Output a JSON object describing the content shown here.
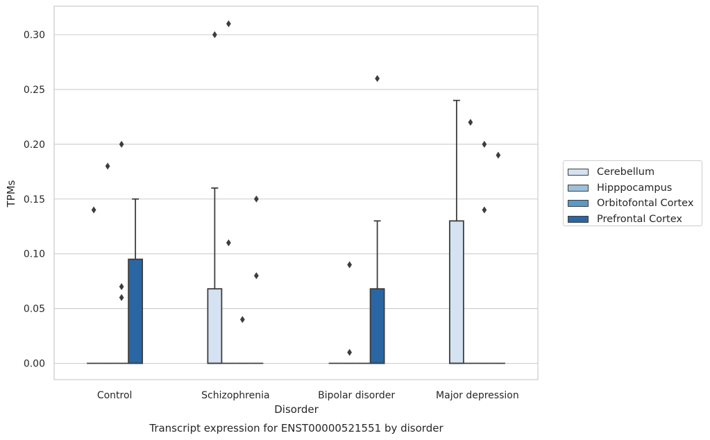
{
  "chart_data": {
    "type": "box",
    "title": "Transcript expression for ENST00000521551 by disorder",
    "xlabel": "Disorder",
    "ylabel": "TPMs",
    "ylim": [
      -0.015,
      0.326
    ],
    "yticks": [
      "0.00",
      "0.05",
      "0.10",
      "0.15",
      "0.20",
      "0.25",
      "0.30"
    ],
    "grid": "horizontal",
    "legend_position": "right",
    "categories": [
      "Control",
      "Schizophrenia",
      "Bipolar disorder",
      "Major depression"
    ],
    "series": [
      {
        "name": "Cerebellum",
        "color": "#d4e2f1",
        "boxes": [
          {
            "q1": 0,
            "median": 0,
            "q3": 0,
            "whisker_low": 0,
            "whisker_high": 0,
            "outliers": [
              0.14
            ]
          },
          {
            "q1": 0,
            "median": 0,
            "q3": 0.068,
            "whisker_low": 0,
            "whisker_high": 0.16,
            "outliers": [
              0.3
            ]
          },
          {
            "q1": 0,
            "median": 0,
            "q3": 0,
            "whisker_low": 0,
            "whisker_high": 0,
            "outliers": []
          },
          {
            "q1": 0,
            "median": 0,
            "q3": 0.13,
            "whisker_low": 0,
            "whisker_high": 0.24,
            "outliers": []
          }
        ]
      },
      {
        "name": "Hipppocampus",
        "color": "#9bc1da",
        "boxes": [
          {
            "q1": 0,
            "median": 0,
            "q3": 0,
            "whisker_low": 0,
            "whisker_high": 0,
            "outliers": [
              0.18
            ]
          },
          {
            "q1": 0,
            "median": 0,
            "q3": 0,
            "whisker_low": 0,
            "whisker_high": 0,
            "outliers": [
              0.31,
              0.11
            ]
          },
          {
            "q1": 0,
            "median": 0,
            "q3": 0,
            "whisker_low": 0,
            "whisker_high": 0,
            "outliers": [
              0.09,
              0.01
            ]
          },
          {
            "q1": 0,
            "median": 0,
            "q3": 0,
            "whisker_low": 0,
            "whisker_high": 0,
            "outliers": [
              0.22
            ]
          }
        ]
      },
      {
        "name": "Orbitofontal Cortex",
        "color": "#5a9ac6",
        "boxes": [
          {
            "q1": 0,
            "median": 0,
            "q3": 0,
            "whisker_low": 0,
            "whisker_high": 0,
            "outliers": [
              0.2,
              0.07,
              0.06
            ]
          },
          {
            "q1": 0,
            "median": 0,
            "q3": 0,
            "whisker_low": 0,
            "whisker_high": 0,
            "outliers": [
              0.04
            ]
          },
          {
            "q1": 0,
            "median": 0,
            "q3": 0,
            "whisker_low": 0,
            "whisker_high": 0,
            "outliers": []
          },
          {
            "q1": 0,
            "median": 0,
            "q3": 0,
            "whisker_low": 0,
            "whisker_high": 0,
            "outliers": [
              0.2,
              0.14
            ]
          }
        ]
      },
      {
        "name": "Prefrontal Cortex",
        "color": "#2a66a3",
        "boxes": [
          {
            "q1": 0,
            "median": 0,
            "q3": 0.095,
            "whisker_low": 0,
            "whisker_high": 0.15,
            "outliers": []
          },
          {
            "q1": 0,
            "median": 0,
            "q3": 0,
            "whisker_low": 0,
            "whisker_high": 0,
            "outliers": [
              0.15,
              0.08
            ]
          },
          {
            "q1": 0,
            "median": 0,
            "q3": 0.068,
            "whisker_low": 0,
            "whisker_high": 0.13,
            "outliers": [
              0.26
            ]
          },
          {
            "q1": 0,
            "median": 0,
            "q3": 0,
            "whisker_low": 0,
            "whisker_high": 0,
            "outliers": [
              0.19
            ]
          }
        ]
      }
    ]
  }
}
